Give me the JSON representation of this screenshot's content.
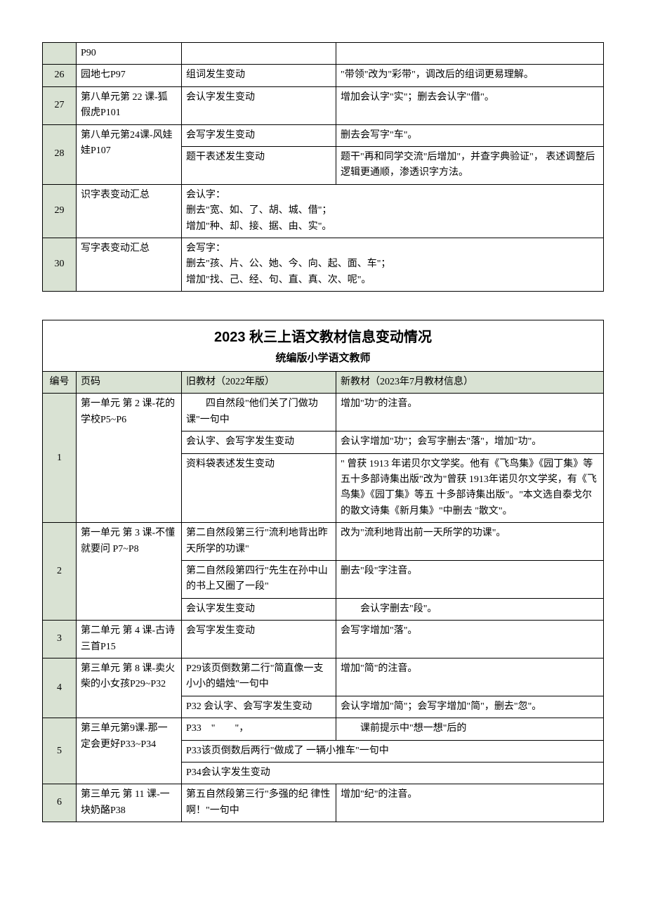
{
  "table1": {
    "rows": [
      {
        "num": "",
        "page": "P90",
        "change": "",
        "desc": ""
      },
      {
        "num": "26",
        "page": "园地七P97",
        "change": "组词发生变动",
        "desc": "\"带领\"改为\"彩带\"，调改后的组词更易理解。"
      },
      {
        "num": "27",
        "page": "第八单元第 22 课-狐假虎P101",
        "change": "会认字发生变动",
        "desc": "增加会认字\"实\"；删去会认字\"借\"。"
      },
      {
        "num": "28",
        "page": "第八单元第24课-风娃娃P107",
        "sub": [
          {
            "change": "会写字发生变动",
            "desc": "删去会写字\"车\"。"
          },
          {
            "change": "题干表述发生变动",
            "desc": "题干\"再和同学交流\"后增加\"，并查字典验证\"， 表述调整后逻辑更通顺，渗透识字方法。"
          }
        ]
      },
      {
        "num": "29",
        "page": "识字表变动汇总",
        "merged": "会认字：\n删去\"宽、如、了、胡、城、借\"；\n增加\"种、却、接、据、由、实\"。"
      },
      {
        "num": "30",
        "page": "写字表变动汇总",
        "merged": "会写字：\n删去\"孩、片、公、她、今、向、起、面、车\"；\n增加\"找、己、经、句、直、真、次、呢\"。"
      }
    ]
  },
  "table2": {
    "title": "2023 秋三上语文教材信息变动情况",
    "subtitle": "统编版小学语文教师",
    "headers": {
      "num": "编号",
      "page": "页码",
      "old": "旧教材（2022年版）",
      "new": "新教材（2023年7月教材信息）"
    },
    "rows": [
      {
        "num": "1",
        "page": "第一单元 第 2 课-花的学校P5~P6",
        "sub": [
          {
            "old": "　　四自然段\"他们关了门做功 课\"一句中",
            "new": "增加\"功\"的注音。"
          },
          {
            "old": "会认字、会写字发生变动",
            "new": "会认字增加\"功\"；会写字删去\"落\"，增加\"功\"。"
          },
          {
            "old": "资料袋表述发生变动",
            "new": "\" 曾获 1913 年诺贝尔文学奖。他有《飞鸟集》《园丁集》等五十多部诗集出版\"改为\"曾获 1913年诺贝尔文学奖，有《飞鸟集》《园丁集》等五 十多部诗集出版\"。\"本文选自泰戈尔的散文诗集《新月集》\"中删去 \"散文\"。"
          }
        ]
      },
      {
        "num": "2",
        "page": "第一单元 第 3 课-不懂就要问 P7~P8",
        "sub": [
          {
            "old": "第二自然段第三行\"流利地背出昨天所学的功课\"",
            "new": "改为\"流利地背出前一天所学的功课\"。"
          },
          {
            "old": "第二自然段第四行\"先生在孙中山的书上又圈了一段\"",
            "new": "删去\"段\"字注音。"
          },
          {
            "old": "会认字发生变动",
            "new": "　　会认字删去\"段\"。"
          }
        ]
      },
      {
        "num": "3",
        "page": "第二单元 第 4 课-古诗三首P15",
        "old": "会写字发生变动",
        "new": "会写字增加\"落\"。"
      },
      {
        "num": "4",
        "page": "第三单元 第 8 课-卖火柴的小女孩P29~P32",
        "sub": [
          {
            "old": "P29该页倒数第二行\"简直像一支小小的蜡烛\"一句中",
            "new": "增加\"简\"的注音。"
          },
          {
            "old": "P32  会认字、会写字发生变动",
            "new": "会认字增加\"简\"；会写字增加\"简\"，删去\"忽\"。"
          }
        ]
      },
      {
        "num": "5",
        "page": "第三单元第9课-那一定会更好P33~P34",
        "sub": [
          {
            "old": "P33　\"　　\"，",
            "new": "　　课前提示中\"想一想\"后的"
          },
          {
            "oldspan": "P33该页倒数后两行\"做成了 一辆小推车\"一句中"
          },
          {
            "oldspan": "P34会认字发生变动"
          }
        ]
      },
      {
        "num": "6",
        "page": "第三单元 第 11 课-一块奶酪P38",
        "old": "第五自然段第三行\"多强的纪 律性啊！\"一句中",
        "new": "增加\"纪\"的注音。"
      }
    ]
  }
}
